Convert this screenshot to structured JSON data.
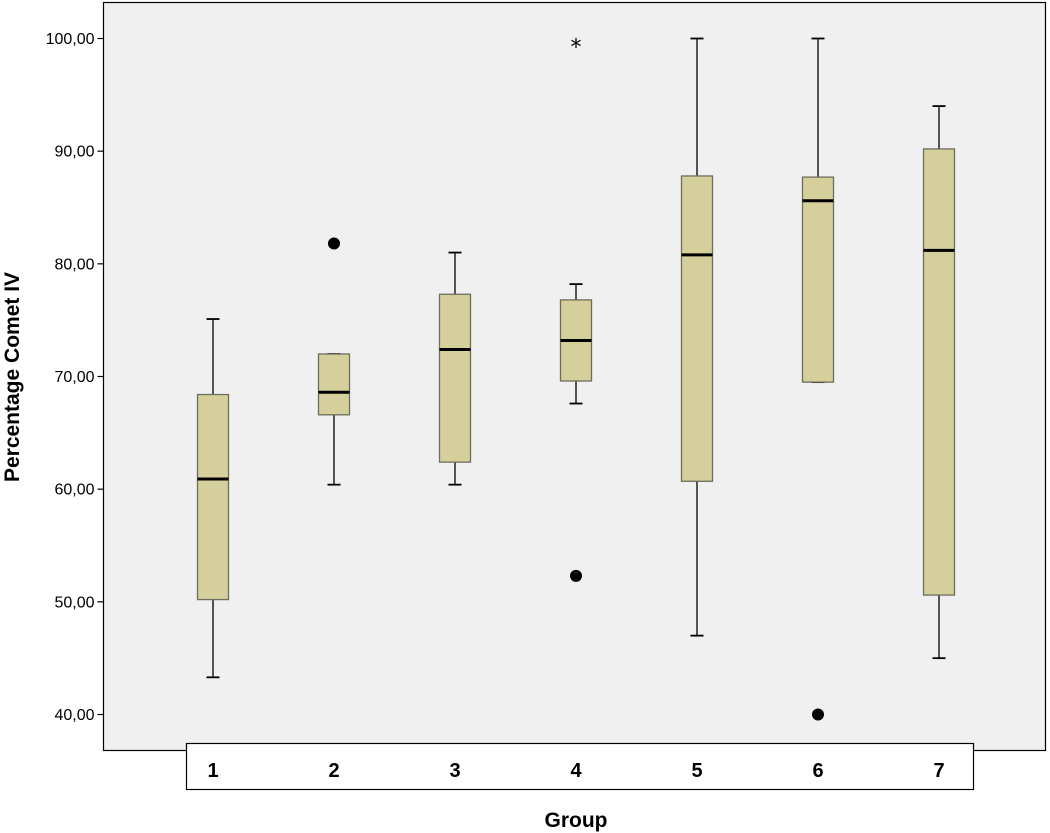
{
  "chart_data": {
    "type": "boxplot",
    "xlabel": "Group",
    "ylabel": "Percentage Comet IV",
    "ylim": [
      38.2,
      102.5
    ],
    "y_ticks": [
      40,
      50,
      60,
      70,
      80,
      90,
      100
    ],
    "y_tick_labels": [
      "40,00",
      "50,00",
      "60,00",
      "70,00",
      "80,00",
      "90,00",
      "100,00"
    ],
    "categories": [
      "1",
      "2",
      "3",
      "4",
      "5",
      "6",
      "7"
    ],
    "grid": false,
    "box_fill_color": "#d4cf9b",
    "plot_background_color": "#f0f0f0",
    "boxes": [
      {
        "category": "1",
        "whisker_low": 43.3,
        "q1": 50.2,
        "median": 60.9,
        "q3": 68.4,
        "whisker_high": 75.1,
        "outliers": [],
        "extremes": []
      },
      {
        "category": "2",
        "whisker_low": 60.4,
        "q1": 66.6,
        "median": 68.6,
        "q3": 72.0,
        "whisker_high": 72.0,
        "outliers": [
          81.8
        ],
        "extremes": []
      },
      {
        "category": "3",
        "whisker_low": 60.4,
        "q1": 62.4,
        "median": 72.4,
        "q3": 77.3,
        "whisker_high": 81.0,
        "outliers": [],
        "extremes": []
      },
      {
        "category": "4",
        "whisker_low": 67.6,
        "q1": 69.6,
        "median": 73.2,
        "q3": 76.8,
        "whisker_high": 78.2,
        "outliers": [
          52.3
        ],
        "extremes": [
          99.4
        ]
      },
      {
        "category": "5",
        "whisker_low": 47.0,
        "q1": 60.7,
        "median": 80.8,
        "q3": 87.8,
        "whisker_high": 100.0,
        "outliers": [],
        "extremes": []
      },
      {
        "category": "6",
        "whisker_low": 69.5,
        "q1": 69.5,
        "median": 85.6,
        "q3": 87.7,
        "whisker_high": 100.0,
        "outliers": [
          40.0
        ],
        "extremes": []
      },
      {
        "category": "7",
        "whisker_low": 45.0,
        "q1": 50.6,
        "median": 81.2,
        "q3": 90.2,
        "whisker_high": 94.0,
        "outliers": [],
        "extremes": []
      }
    ]
  }
}
